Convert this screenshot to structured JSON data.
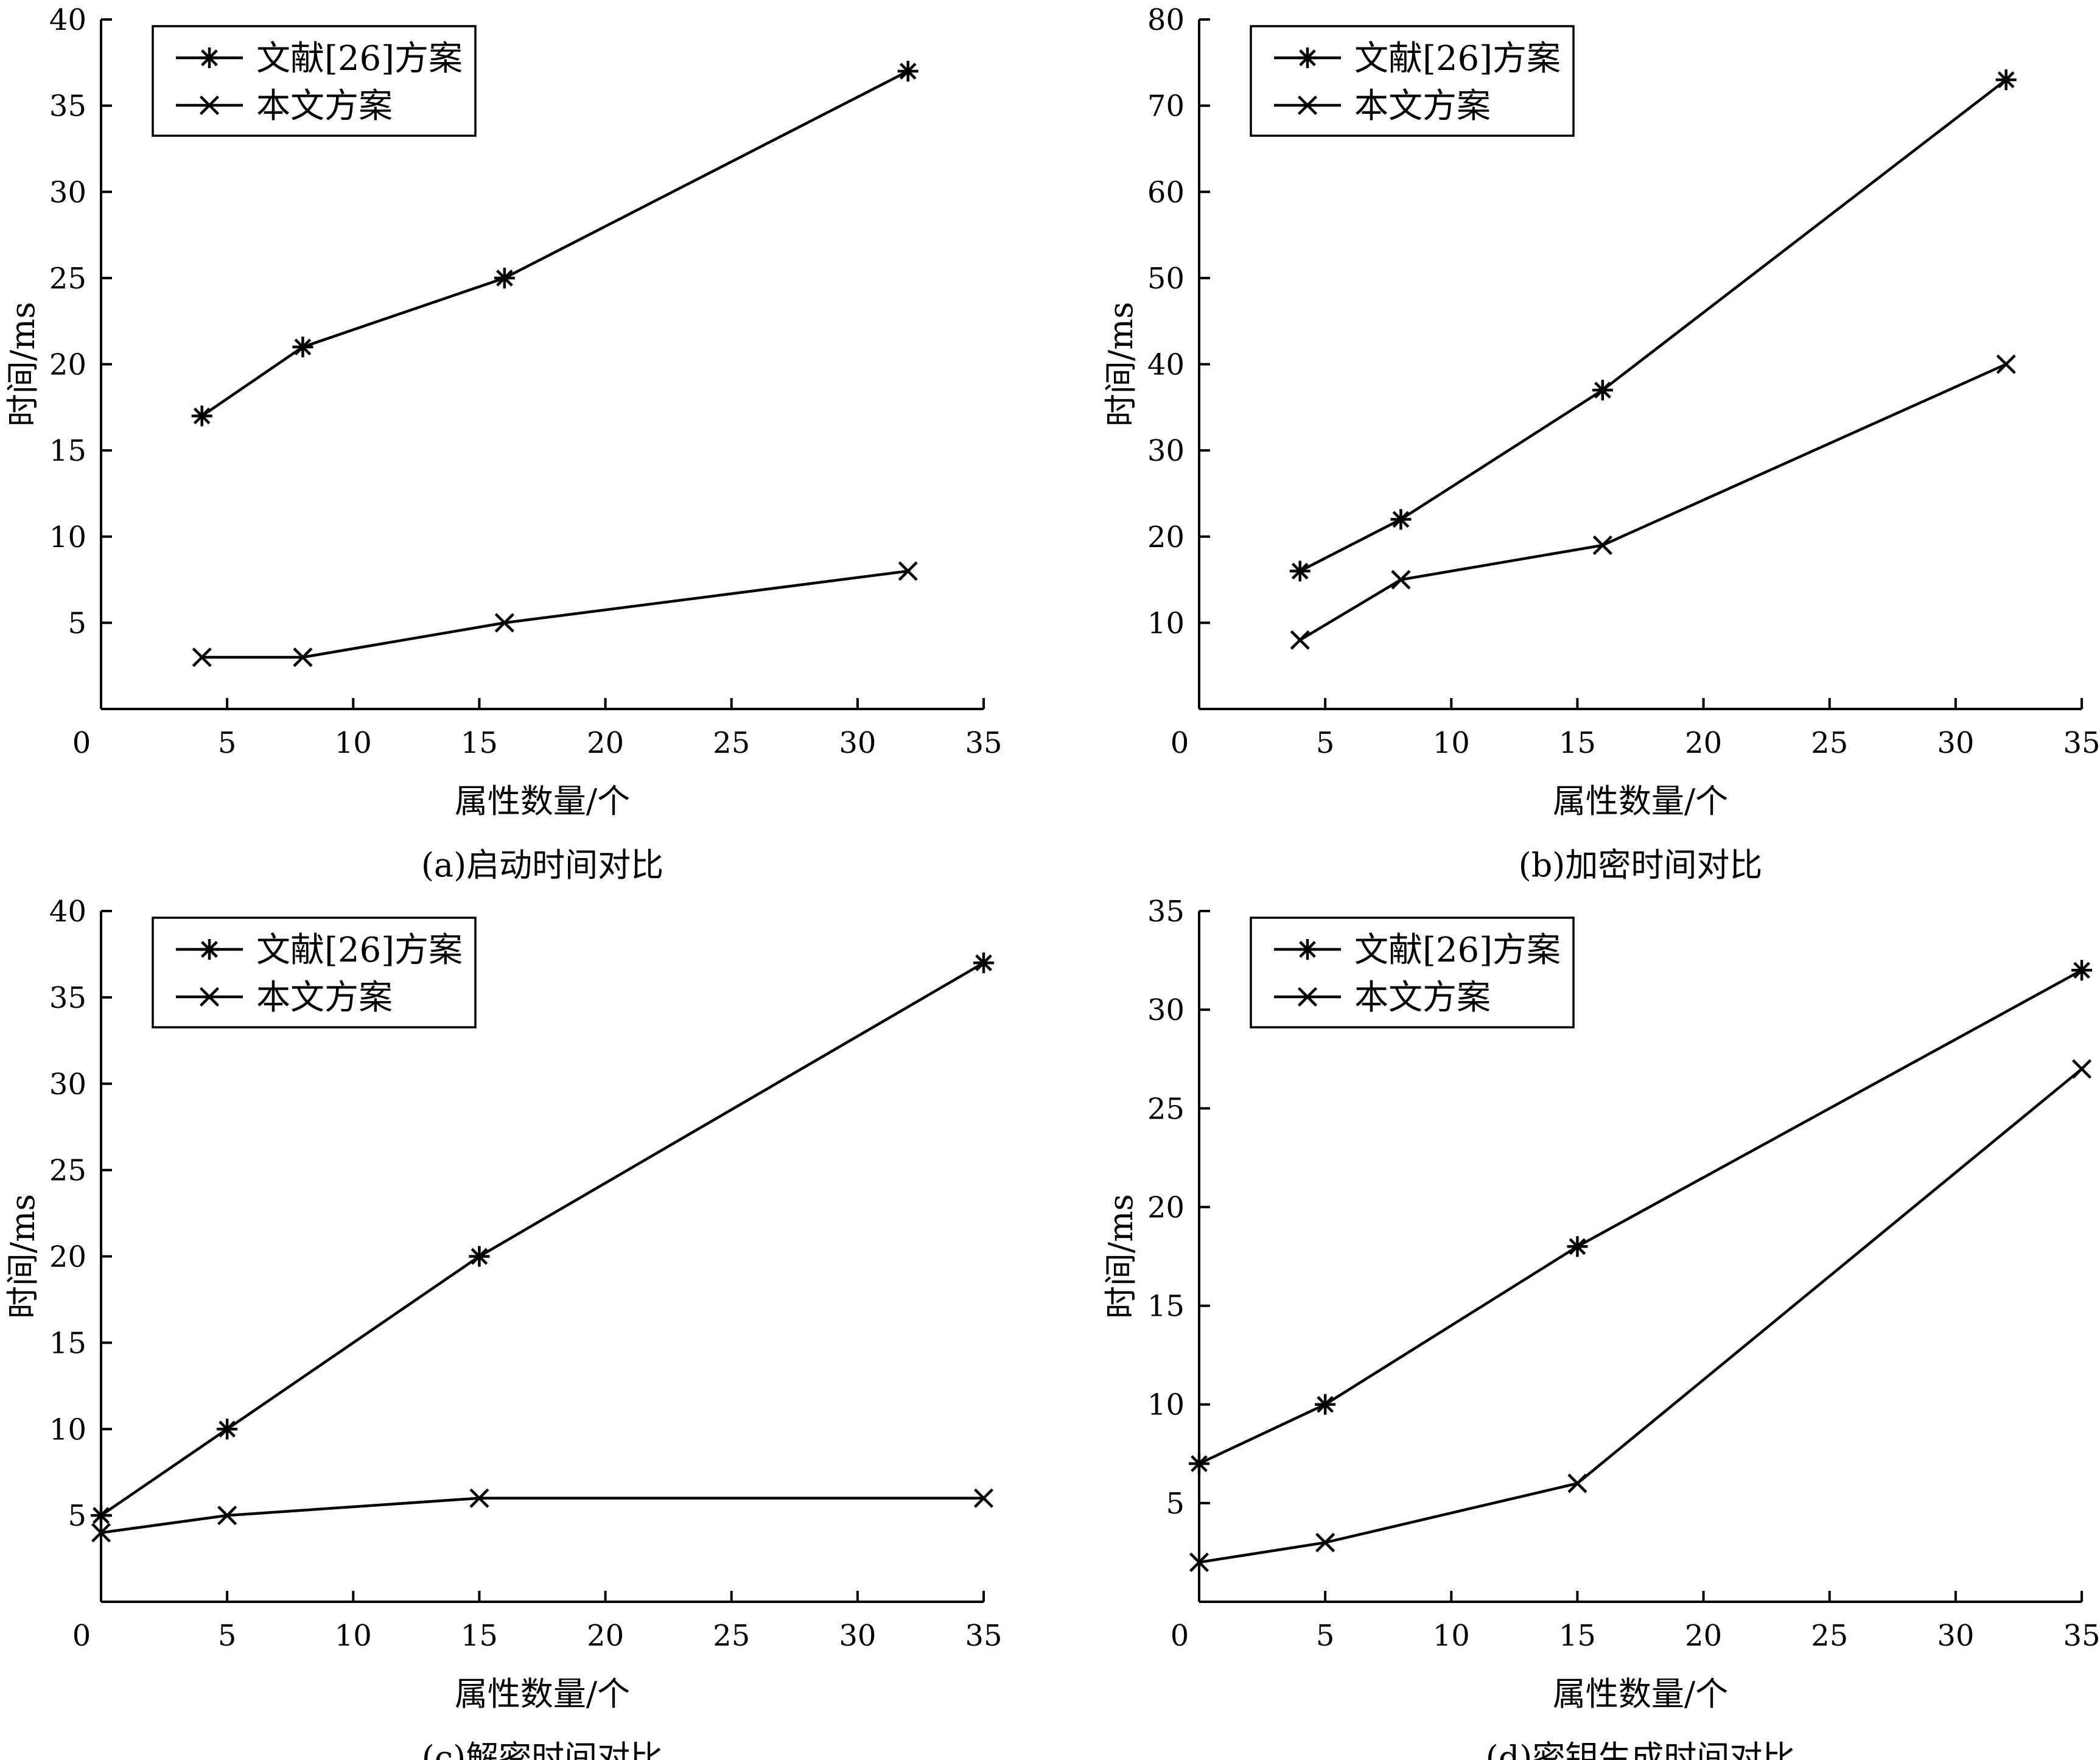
{
  "chart_data": [
    {
      "type": "line",
      "caption": "(a)启动时间对比",
      "xlabel": "属性数量/个",
      "ylabel": "时间/ms",
      "xlim": [
        0,
        35
      ],
      "ylim": [
        0,
        40
      ],
      "xticks": [
        0,
        5,
        10,
        15,
        20,
        25,
        30,
        35
      ],
      "yticks": [
        5,
        10,
        15,
        20,
        25,
        30,
        35,
        40
      ],
      "y_zero_label": "0",
      "legend": "top-left",
      "series": [
        {
          "name": "文献[26]方案",
          "marker": "asterisk",
          "x": [
            4,
            8,
            16,
            32
          ],
          "y": [
            17,
            21,
            25,
            37
          ]
        },
        {
          "name": "本文方案",
          "marker": "cross",
          "x": [
            4,
            8,
            16,
            32
          ],
          "y": [
            3,
            3,
            5,
            8
          ]
        }
      ]
    },
    {
      "type": "line",
      "caption": "(b)加密时间对比",
      "xlabel": "属性数量/个",
      "ylabel": "时间/ms",
      "xlim": [
        0,
        35
      ],
      "ylim": [
        0,
        80
      ],
      "xticks": [
        0,
        5,
        10,
        15,
        20,
        25,
        30,
        35
      ],
      "yticks": [
        10,
        20,
        30,
        40,
        50,
        60,
        70,
        80
      ],
      "y_zero_label": "0",
      "legend": "top-left",
      "series": [
        {
          "name": "文献[26]方案",
          "marker": "asterisk",
          "x": [
            4,
            8,
            16,
            32
          ],
          "y": [
            16,
            22,
            37,
            73
          ]
        },
        {
          "name": "本文方案",
          "marker": "cross",
          "x": [
            4,
            8,
            16,
            32
          ],
          "y": [
            8,
            15,
            19,
            40
          ]
        }
      ]
    },
    {
      "type": "line",
      "caption": "(c)解密时间对比",
      "xlabel": "属性数量/个",
      "ylabel": "时间/ms",
      "xlim": [
        0,
        35
      ],
      "ylim": [
        0,
        40
      ],
      "xticks": [
        0,
        5,
        10,
        15,
        20,
        25,
        30,
        35
      ],
      "yticks": [
        5,
        10,
        15,
        20,
        25,
        30,
        35,
        40
      ],
      "y_zero_label": "0",
      "legend": "top-left",
      "series": [
        {
          "name": "文献[26]方案",
          "marker": "asterisk",
          "x": [
            0,
            5,
            15,
            35
          ],
          "y": [
            5,
            10,
            20,
            37
          ]
        },
        {
          "name": "本文方案",
          "marker": "cross",
          "x": [
            0,
            5,
            15,
            35
          ],
          "y": [
            4,
            5,
            6,
            6
          ]
        }
      ]
    },
    {
      "type": "line",
      "caption": "(d)密钥生成时间对比",
      "xlabel": "属性数量/个",
      "ylabel": "时间/ms",
      "xlim": [
        0,
        35
      ],
      "ylim": [
        0,
        35
      ],
      "xticks": [
        0,
        5,
        10,
        15,
        20,
        25,
        30,
        35
      ],
      "yticks": [
        5,
        10,
        15,
        20,
        25,
        30,
        35
      ],
      "y_zero_label": "0",
      "legend": "top-left",
      "series": [
        {
          "name": "文献[26]方案",
          "marker": "asterisk",
          "x": [
            0,
            5,
            15,
            35
          ],
          "y": [
            7,
            10,
            18,
            32
          ]
        },
        {
          "name": "本文方案",
          "marker": "cross",
          "x": [
            0,
            5,
            15,
            35
          ],
          "y": [
            2,
            3,
            6,
            27
          ]
        }
      ]
    }
  ]
}
